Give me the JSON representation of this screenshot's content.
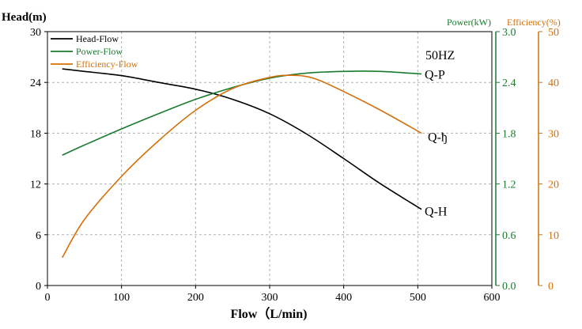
{
  "chart_data": {
    "type": "line",
    "annotation": "50HZ",
    "x_axis": {
      "label": "Flow（L/min)",
      "min": 0,
      "max": 600,
      "ticks": [
        0,
        100,
        200,
        300,
        400,
        500,
        600
      ]
    },
    "y_left": {
      "label": "Head(m)",
      "min": 0,
      "max": 30,
      "ticks": [
        0,
        6,
        12,
        18,
        24,
        30
      ]
    },
    "y_power": {
      "label": "Power(kW)",
      "min": 0,
      "max": 3,
      "ticks": [
        "0.0",
        "0.6",
        "1.2",
        "1.8",
        "2.4",
        "3.0"
      ],
      "color": "#1a7a2e"
    },
    "y_eff": {
      "label": "Efficiency(%)",
      "min": 0,
      "max": 50,
      "ticks": [
        0,
        10,
        20,
        30,
        40,
        50
      ],
      "color": "#d4700a"
    },
    "legend": [
      {
        "name": "Head-Flow",
        "color": "#000000"
      },
      {
        "name": "Power-Flow",
        "color": "#1a7a2e"
      },
      {
        "name": "Efficiency-Flow",
        "color": "#d4700a"
      }
    ],
    "series": [
      {
        "name": "Head-Flow",
        "axis": "left",
        "color": "#000000",
        "end_label": "Q-H",
        "x": [
          20,
          50,
          100,
          150,
          200,
          250,
          300,
          350,
          400,
          450,
          505
        ],
        "y": [
          25.6,
          25.3,
          24.8,
          24.0,
          23.2,
          22.0,
          20.3,
          17.9,
          15.0,
          12.0,
          9.0
        ]
      },
      {
        "name": "Power-Flow",
        "axis": "power",
        "color": "#1a7a2e",
        "end_label": "Q-P",
        "x": [
          20,
          50,
          100,
          150,
          200,
          250,
          300,
          350,
          400,
          450,
          505
        ],
        "y": [
          1.54,
          1.66,
          1.85,
          2.03,
          2.2,
          2.34,
          2.45,
          2.51,
          2.53,
          2.53,
          2.5
        ]
      },
      {
        "name": "Efficiency-Flow",
        "axis": "eff",
        "color": "#d4700a",
        "end_label": "Q-ђ",
        "x": [
          20,
          50,
          100,
          150,
          200,
          250,
          300,
          330,
          360,
          400,
          450,
          505
        ],
        "y": [
          5.5,
          13.0,
          21.5,
          28.5,
          34.5,
          38.8,
          41.0,
          41.4,
          40.8,
          38.2,
          34.5,
          30.0
        ]
      }
    ]
  }
}
